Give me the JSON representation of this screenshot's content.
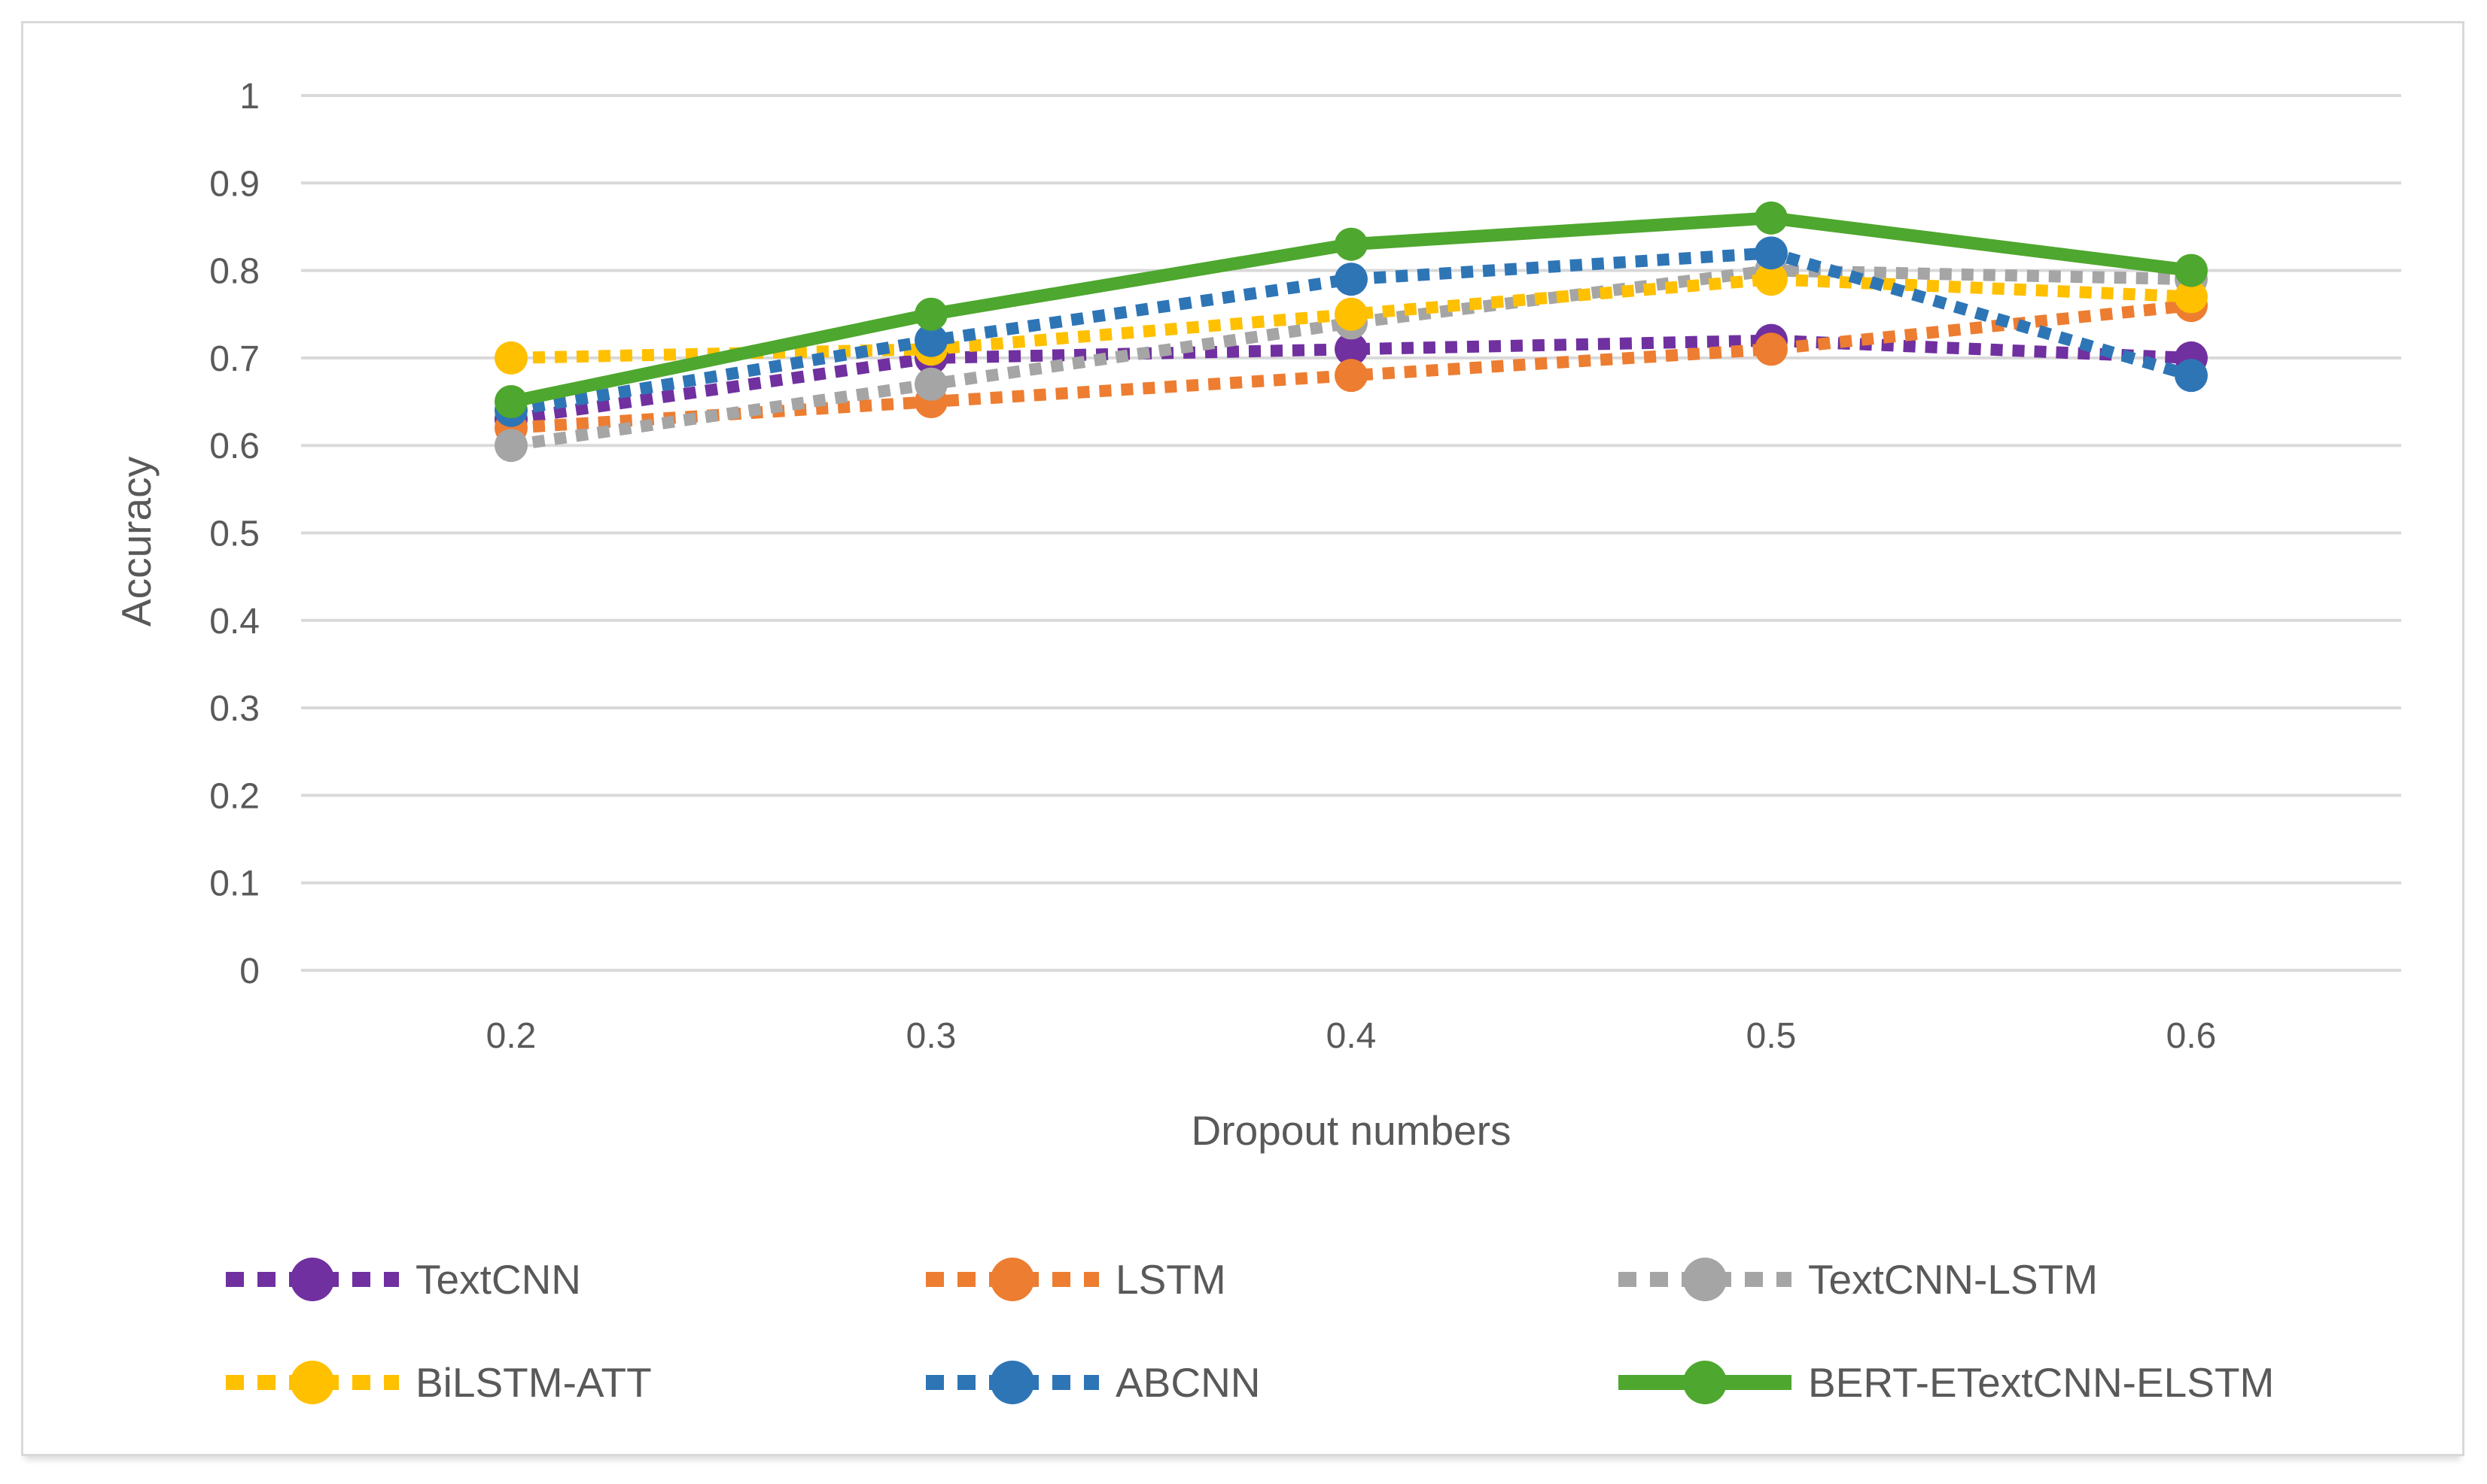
{
  "chart_data": {
    "type": "line",
    "title": "",
    "xlabel": "Dropout numbers",
    "ylabel": "Accuracy",
    "categories": [
      "0.2",
      "0.3",
      "0.4",
      "0.5",
      "0.6"
    ],
    "y_ticks": [
      "0",
      "0.1",
      "0.2",
      "0.3",
      "0.4",
      "0.5",
      "0.6",
      "0.7",
      "0.8",
      "0.9",
      "1"
    ],
    "ylim": [
      0,
      1
    ],
    "grid": true,
    "legend_position": "bottom",
    "series": [
      {
        "name": "TextCNN",
        "color": "#7030A0",
        "style": "dotted",
        "values": [
          0.63,
          0.7,
          0.71,
          0.72,
          0.7
        ]
      },
      {
        "name": "LSTM",
        "color": "#ED7D31",
        "style": "dotted",
        "values": [
          0.62,
          0.65,
          0.68,
          0.71,
          0.76
        ]
      },
      {
        "name": "TextCNN-LSTM",
        "color": "#A5A5A5",
        "style": "dotted",
        "values": [
          0.6,
          0.67,
          0.74,
          0.8,
          0.79
        ]
      },
      {
        "name": "BiLSTM-ATT",
        "color": "#FFC000",
        "style": "dotted",
        "values": [
          0.7,
          0.71,
          0.75,
          0.79,
          0.77
        ]
      },
      {
        "name": "ABCNN",
        "color": "#2E75B6",
        "style": "dotted",
        "values": [
          0.64,
          0.72,
          0.79,
          0.82,
          0.68
        ]
      },
      {
        "name": "BERT-ETextCNN-ELSTM",
        "color": "#4EA72E",
        "style": "solid",
        "values": [
          0.65,
          0.75,
          0.83,
          0.86,
          0.8
        ]
      }
    ]
  },
  "colors": {
    "gridline": "#D9D9D9",
    "axis_text": "#595959",
    "card_border": "#D9D9D9",
    "background": "#FFFFFF"
  }
}
